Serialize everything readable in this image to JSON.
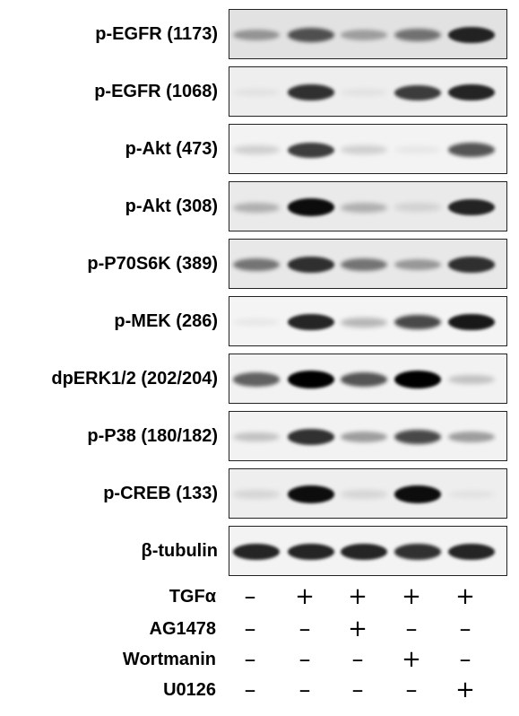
{
  "figure": {
    "blots": [
      {
        "label": "p-EGFR (1173)",
        "bands": [
          0.35,
          0.65,
          0.3,
          0.5,
          0.85
        ],
        "bg": "#e2e2e2"
      },
      {
        "label": "p-EGFR (1068)",
        "bands": [
          0.05,
          0.8,
          0.05,
          0.75,
          0.85
        ],
        "bg": "#eeeeee"
      },
      {
        "label": "p-Akt (473)",
        "bands": [
          0.15,
          0.75,
          0.15,
          0.05,
          0.65
        ],
        "bg": "#f3f3f3"
      },
      {
        "label": "p-Akt (308)",
        "bands": [
          0.25,
          0.95,
          0.25,
          0.1,
          0.85
        ],
        "bg": "#eaeaea"
      },
      {
        "label": "p-P70S6K (389)",
        "bands": [
          0.5,
          0.8,
          0.5,
          0.35,
          0.8
        ],
        "bg": "#e8e8e8"
      },
      {
        "label": "p-MEK (286)",
        "bands": [
          0.05,
          0.85,
          0.25,
          0.7,
          0.9
        ],
        "bg": "#f4f4f4"
      },
      {
        "label": "dpERK1/2 (202/204)",
        "bands": [
          0.6,
          1.0,
          0.65,
          1.0,
          0.2
        ],
        "bg": "#f2f2f2"
      },
      {
        "label": "p-P38 (180/182)",
        "bands": [
          0.2,
          0.8,
          0.35,
          0.7,
          0.35
        ],
        "bg": "#f2f2f2"
      },
      {
        "label": "p-CREB (133)",
        "bands": [
          0.1,
          0.95,
          0.1,
          0.95,
          0.05
        ],
        "bg": "#eeeeee"
      },
      {
        "label": "β-tubulin",
        "bands": [
          0.85,
          0.85,
          0.85,
          0.8,
          0.85
        ],
        "bg": "#f3f3f3"
      }
    ],
    "treatments": [
      {
        "label": "TGFα",
        "values": [
          "–",
          "+",
          "+",
          "+",
          "+"
        ]
      },
      {
        "label": "AG1478",
        "values": [
          "–",
          "–",
          "+",
          "–",
          "–"
        ]
      },
      {
        "label": "Wortmanin",
        "values": [
          "–",
          "–",
          "–",
          "+",
          "–"
        ]
      },
      {
        "label": "U0126",
        "values": [
          "–",
          "–",
          "–",
          "–",
          "+"
        ]
      }
    ]
  }
}
